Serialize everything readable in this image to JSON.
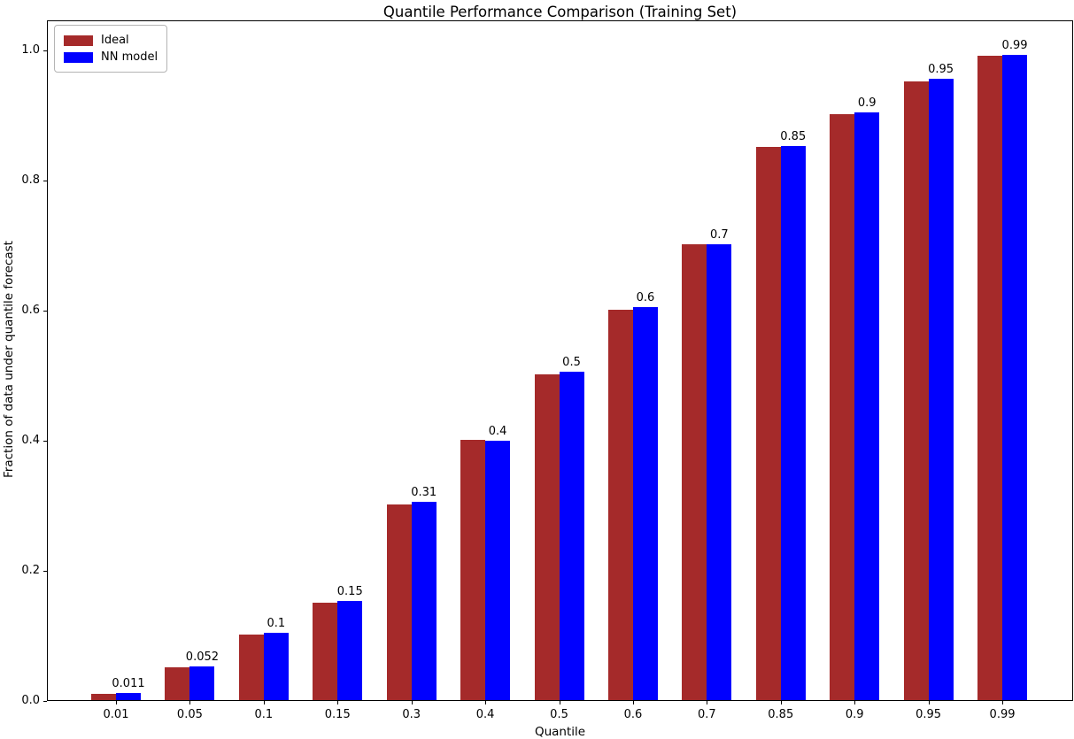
{
  "chart_data": {
    "type": "bar",
    "title": "Quantile Performance Comparison (Training Set)",
    "xlabel": "Quantile",
    "ylabel": "Fraction of data under quantile forecast",
    "categories": [
      "0.01",
      "0.05",
      "0.1",
      "0.15",
      "0.3",
      "0.4",
      "0.5",
      "0.6",
      "0.7",
      "0.85",
      "0.9",
      "0.95",
      "0.99"
    ],
    "series": [
      {
        "name": "Ideal",
        "color": "#A52A2A",
        "values": [
          0.01,
          0.05,
          0.1,
          0.15,
          0.3,
          0.4,
          0.5,
          0.6,
          0.7,
          0.85,
          0.9,
          0.95,
          0.99
        ]
      },
      {
        "name": "NN model",
        "color": "#0000FF",
        "values": [
          0.011,
          0.052,
          0.103,
          0.152,
          0.305,
          0.398,
          0.504,
          0.604,
          0.7,
          0.851,
          0.903,
          0.954,
          0.992
        ]
      }
    ],
    "bar_labels": [
      "0.011",
      "0.052",
      "0.1",
      "0.15",
      "0.31",
      "0.4",
      "0.5",
      "0.6",
      "0.7",
      "0.85",
      "0.9",
      "0.95",
      "0.99"
    ],
    "yticks": [
      "0.0",
      "0.2",
      "0.4",
      "0.6",
      "0.8",
      "1.0"
    ],
    "ylim": [
      0,
      1.043
    ],
    "grid": false,
    "legend_position": "upper left"
  }
}
